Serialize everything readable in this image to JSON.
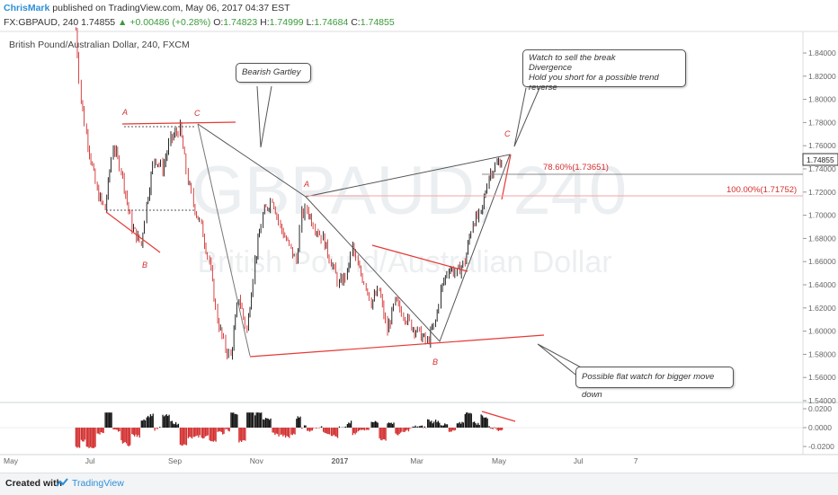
{
  "header": {
    "author": "ChrisMark",
    "published": "published on TradingView.com, May 06, 2017 04:37 EST",
    "symbol_line_prefix": "FX:GBPAUD, 240  1.74855",
    "change": "▲ +0.00486 (+0.28%)",
    "ohlc": {
      "o_label": "O:",
      "o_value": "1.74823",
      "h_label": "H:",
      "h_value": "1.74999",
      "l_label": "L:",
      "l_value": "1.74684",
      "c_label": "C:",
      "c_value": "1.74855"
    }
  },
  "footer": {
    "created_with": "Created with",
    "brand": "TradingView"
  },
  "colors": {
    "wave": "#d32f2f",
    "pattern": "#444444",
    "up_candle": "#111111",
    "down_candle": "#d32f2f",
    "watermark": "#eceff1",
    "price_tag_bg": "#ffffff"
  },
  "annotations": {
    "bearish_gartley": "Bearish Gartley",
    "watch_sell": [
      "Watch to sell the break",
      "Divergence",
      "Hold you short for a possible trend reverse"
    ],
    "flat_watch": "Possible flat watch for bigger move down"
  },
  "chart_data": {
    "type": "line",
    "title": "British Pound/Australian Dollar, 240, FXCM",
    "watermark_symbol": "GBPAUD, 240",
    "watermark_name": "British Pound/Australian Dollar",
    "x_ticks": [
      "May",
      "Jul",
      "Sep",
      "Nov",
      "2017",
      "Mar",
      "May",
      "Jul",
      "7"
    ],
    "y_ticks": [
      "1.84000",
      "1.82000",
      "1.80000",
      "1.78000",
      "1.76000",
      "1.74000",
      "1.72000",
      "1.70000",
      "1.68000",
      "1.66000",
      "1.64000",
      "1.62000",
      "1.60000",
      "1.58000",
      "1.56000",
      "1.54000"
    ],
    "ylim": [
      1.53,
      1.86
    ],
    "current_price": "1.74855",
    "series": [
      {
        "x": [
          "2016-06-20",
          "2016-06-24",
          "2016-06-28",
          "2016-07-06",
          "2016-07-12",
          "2016-07-18",
          "2016-07-24",
          "2016-08-01",
          "2016-08-08",
          "2016-08-12",
          "2016-08-18",
          "2016-08-24",
          "2016-08-30",
          "2016-09-06",
          "2016-09-12",
          "2016-09-16",
          "2016-09-22",
          "2016-09-28",
          "2016-10-04",
          "2016-10-10",
          "2016-10-14",
          "2016-10-20",
          "2016-10-26",
          "2016-11-01",
          "2016-11-07",
          "2016-11-14",
          "2016-11-20",
          "2016-11-28",
          "2016-12-02",
          "2016-12-06",
          "2016-12-10",
          "2016-12-16",
          "2016-12-22",
          "2016-12-28",
          "2017-01-03",
          "2017-01-09",
          "2017-01-13",
          "2017-01-17",
          "2017-01-23",
          "2017-01-27",
          "2017-02-02",
          "2017-02-08",
          "2017-02-14",
          "2017-02-20",
          "2017-02-26",
          "2017-03-04",
          "2017-03-10",
          "2017-03-16",
          "2017-03-20",
          "2017-03-26",
          "2017-04-01",
          "2017-04-07",
          "2017-04-13",
          "2017-04-19",
          "2017-04-25",
          "2017-05-01",
          "2017-05-06"
        ],
        "y": [
          1.86,
          1.8,
          1.77,
          1.72,
          1.705,
          1.76,
          1.74,
          1.69,
          1.675,
          1.71,
          1.75,
          1.74,
          1.765,
          1.775,
          1.73,
          1.71,
          1.69,
          1.66,
          1.61,
          1.585,
          1.578,
          1.63,
          1.6,
          1.66,
          1.7,
          1.715,
          1.69,
          1.67,
          1.66,
          1.7,
          1.705,
          1.69,
          1.68,
          1.66,
          1.64,
          1.65,
          1.673,
          1.655,
          1.64,
          1.625,
          1.635,
          1.6,
          1.625,
          1.615,
          1.605,
          1.598,
          1.59,
          1.608,
          1.635,
          1.655,
          1.65,
          1.66,
          1.695,
          1.7,
          1.735,
          1.744,
          1.7486
        ]
      }
    ],
    "waves": {
      "gartley_1": {
        "A": "A",
        "B": "B",
        "C": "C"
      },
      "gartley_2": {
        "A": "A",
        "B": "B",
        "C": "C"
      }
    },
    "fib_levels": [
      {
        "label": "78.60%(1.73651)",
        "value": 1.73651
      },
      {
        "label": "100.00%(1.71752)",
        "value": 1.71752
      }
    ],
    "trendlines": [
      {
        "from": [
          "2016-09-16",
          1.7775
        ],
        "to": [
          "2016-07-12",
          1.7775
        ],
        "color": "red"
      },
      {
        "from": [
          "2016-10-14",
          1.578
        ],
        "to": [
          "2017-05-28",
          1.596
        ],
        "color": "red"
      }
    ],
    "indicator": {
      "y_ticks": [
        "0.0200",
        "0.0000",
        "-0.0200"
      ],
      "ylim": [
        -0.03,
        0.025
      ]
    }
  }
}
